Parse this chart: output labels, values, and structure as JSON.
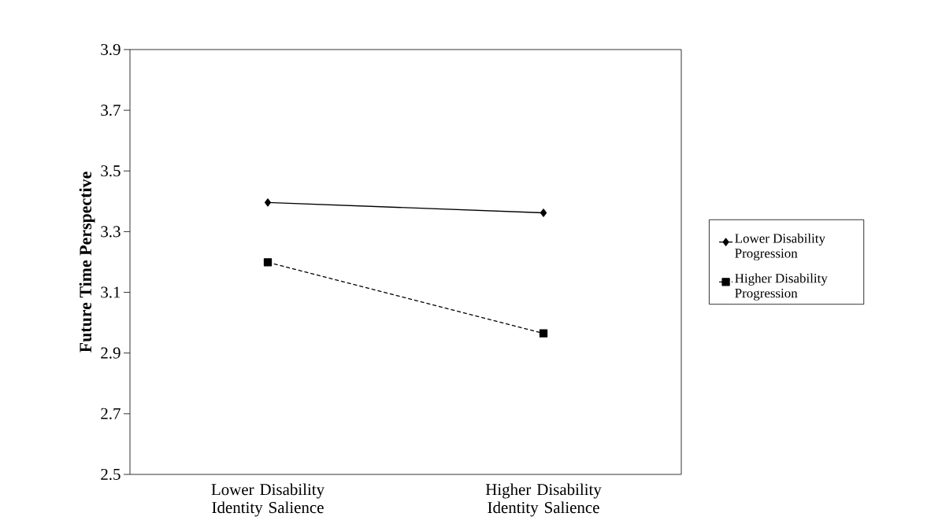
{
  "chart_data": {
    "type": "line",
    "ylabel": "Future Time Perspective",
    "categories": [
      "Lower Disability Identity Salience",
      "Higher Disability Identity Salience"
    ],
    "series": [
      {
        "name": "Lower Disability Progression",
        "color": "#000000",
        "values": [
          3.396,
          3.362
        ],
        "marker": "diamond",
        "line_style": "solid"
      },
      {
        "name": "Higher Disability Progression",
        "color": "#000000",
        "values": [
          3.199,
          2.965
        ],
        "marker": "square",
        "line_style": "dashed"
      }
    ],
    "ylim": [
      2.5,
      3.9
    ],
    "yticks": [
      2.5,
      2.7,
      2.9,
      3.1,
      3.3,
      3.5,
      3.7,
      3.9
    ],
    "grid": false,
    "legend": "right"
  }
}
